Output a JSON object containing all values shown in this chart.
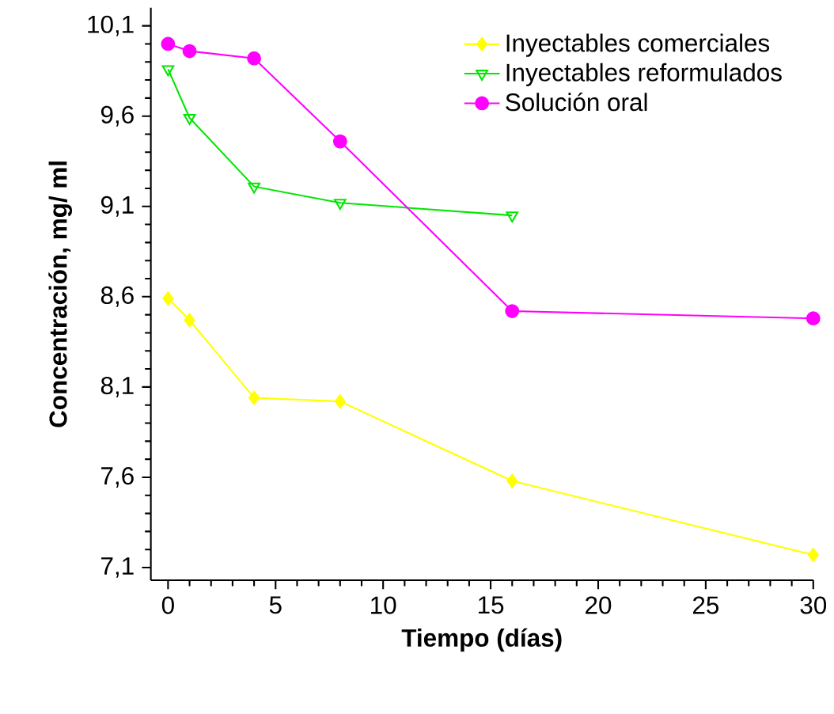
{
  "chart_data": {
    "type": "line",
    "xlabel": "Tiempo (días)",
    "ylabel": "Concentración, mg/ ml",
    "xlim": [
      -0.8,
      30
    ],
    "ylim": [
      7.03,
      10.2
    ],
    "xticks": [
      0,
      5,
      10,
      15,
      20,
      25,
      30
    ],
    "yticks": [
      {
        "value": 7.1,
        "label": "7,1"
      },
      {
        "value": 7.6,
        "label": "7,6"
      },
      {
        "value": 8.1,
        "label": "8,1"
      },
      {
        "value": 8.6,
        "label": "8,6"
      },
      {
        "value": 9.1,
        "label": "9,1"
      },
      {
        "value": 9.6,
        "label": "9,6"
      },
      {
        "value": 10.1,
        "label": "10,1"
      }
    ],
    "legend": "top right",
    "grid": false,
    "series": [
      {
        "name": "Inyectables comerciales",
        "color": "#ffff00",
        "marker": "diamond",
        "x": [
          0,
          1,
          4,
          8,
          16,
          30
        ],
        "values": [
          8.59,
          8.47,
          8.04,
          8.02,
          7.58,
          7.17
        ]
      },
      {
        "name": "Inyectables reformulados",
        "color": "#00e600",
        "marker": "triangle",
        "x": [
          0,
          1,
          4,
          8,
          16
        ],
        "values": [
          9.86,
          9.59,
          9.21,
          9.12,
          9.05
        ]
      },
      {
        "name": "Solución oral",
        "color": "#ff00ff",
        "marker": "circle",
        "x": [
          0,
          1,
          4,
          8,
          16,
          30
        ],
        "values": [
          10.0,
          9.96,
          9.92,
          9.46,
          8.52,
          8.48
        ]
      }
    ]
  }
}
